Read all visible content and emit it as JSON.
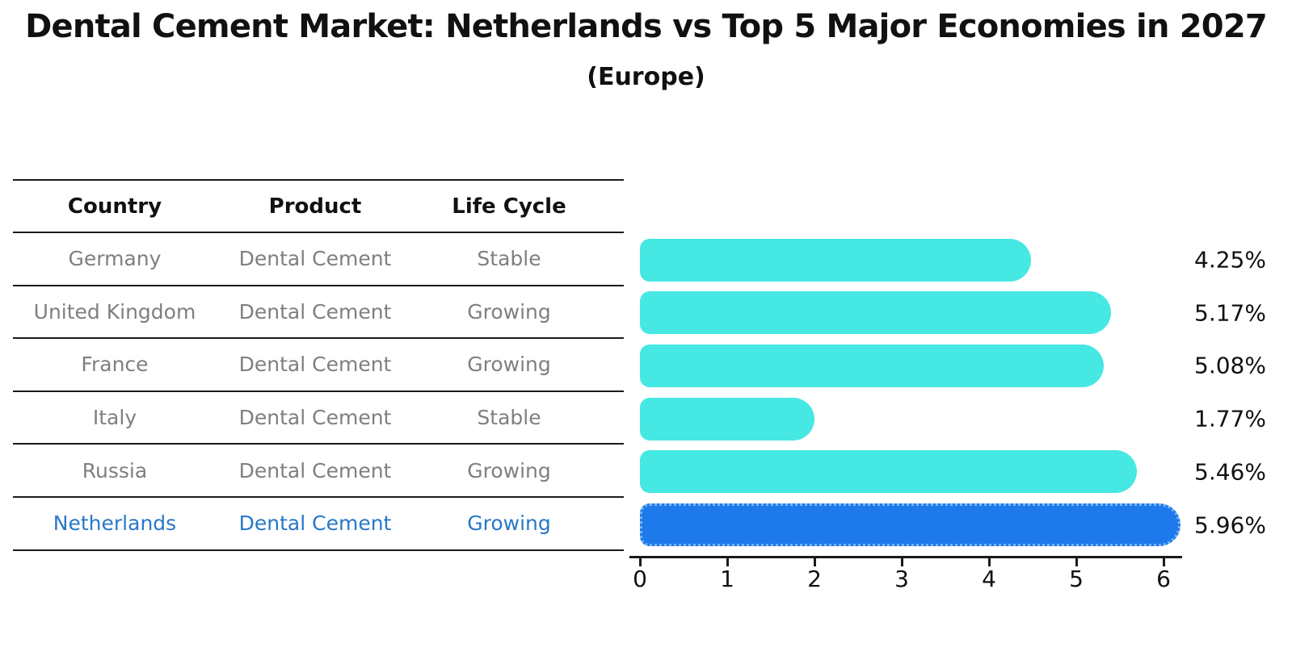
{
  "header": {
    "title": "Dental Cement Market: Netherlands vs Top 5 Major Economies in 2027",
    "subtitle": "(Europe)"
  },
  "table": {
    "headers": [
      "Country",
      "Product",
      "Life Cycle"
    ],
    "rows": [
      {
        "country": "Germany",
        "product": "Dental Cement",
        "life_cycle": "Stable",
        "highlight": false
      },
      {
        "country": "United Kingdom",
        "product": "Dental Cement",
        "life_cycle": "Growing",
        "highlight": false
      },
      {
        "country": "France",
        "product": "Dental Cement",
        "life_cycle": "Growing",
        "highlight": false
      },
      {
        "country": "Italy",
        "product": "Dental Cement",
        "life_cycle": "Stable",
        "highlight": false
      },
      {
        "country": "Russia",
        "product": "Dental Cement",
        "life_cycle": "Growing",
        "highlight": false
      },
      {
        "country": "Netherlands",
        "product": "Dental Cement",
        "life_cycle": "Growing",
        "highlight": true
      }
    ]
  },
  "chart_data": {
    "type": "bar",
    "orientation": "horizontal",
    "title": "Dental Cement Market: Netherlands vs Top 5 Major Economies in 2027",
    "subtitle": "(Europe)",
    "categories": [
      "Germany",
      "United Kingdom",
      "France",
      "Italy",
      "Russia",
      "Netherlands"
    ],
    "values": [
      4.25,
      5.17,
      5.08,
      1.77,
      5.46,
      5.96
    ],
    "value_labels": [
      "4.25%",
      "5.17%",
      "5.08%",
      "1.77%",
      "5.46%",
      "5.96%"
    ],
    "unit": "%",
    "highlight_category": "Netherlands",
    "highlight_index": 5,
    "xlim": [
      0,
      6.2
    ],
    "x_ticks": [
      "0",
      "1",
      "2",
      "3",
      "4",
      "5",
      "6"
    ],
    "grid": false,
    "legend": false
  },
  "colors": {
    "bar": "#46E8E3",
    "bar_highlight": "#1E7AEA",
    "bar_highlight_border": "#7AB6F5",
    "text_muted": "#7F7F7F",
    "text_highlight": "#2878C8",
    "text_dark": "#111111",
    "axis_line": "#1A1A1A"
  }
}
